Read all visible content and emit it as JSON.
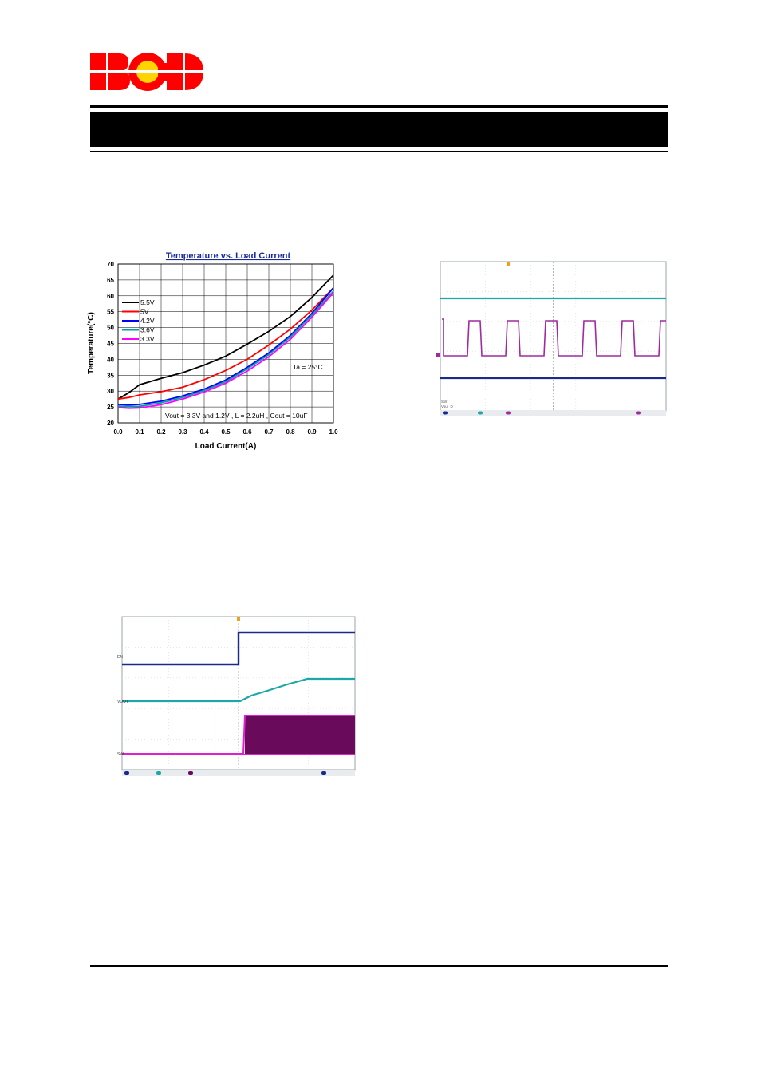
{
  "logo": {
    "text": "BCD",
    "colors": {
      "letters": "#ff0000",
      "center": "#ffd400"
    }
  },
  "colors": {
    "rule": "#000000",
    "title_band": "#000000"
  },
  "chart_data": {
    "type": "line",
    "title": "Temperature vs. Load Current",
    "xlabel": "Load Current(A)",
    "ylabel": "Temperature(°C)",
    "xlim": [
      0.0,
      1.0
    ],
    "ylim": [
      20,
      70
    ],
    "xticks": [
      "0.0",
      "0.1",
      "0.2",
      "0.3",
      "0.4",
      "0.5",
      "0.6",
      "0.7",
      "0.8",
      "0.9",
      "1.0"
    ],
    "yticks": [
      "20",
      "25",
      "30",
      "35",
      "40",
      "45",
      "50",
      "55",
      "60",
      "65",
      "70"
    ],
    "grid": true,
    "legend_position": "top-left",
    "annotations": [
      "Ta = 25°C",
      "Vout = 3.3V and 1.2V , L = 2.2uH , Cout = 10uF"
    ],
    "x": [
      0.0,
      0.05,
      0.1,
      0.2,
      0.3,
      0.4,
      0.5,
      0.6,
      0.7,
      0.8,
      0.9,
      1.0
    ],
    "series": [
      {
        "name": "5.5V",
        "color": "#000000",
        "values": [
          27.5,
          29.5,
          32.0,
          34.0,
          35.8,
          38.2,
          41.0,
          44.8,
          48.8,
          53.5,
          59.5,
          66.5
        ]
      },
      {
        "name": "5V",
        "color": "#ff0000",
        "values": [
          27.5,
          28.0,
          28.8,
          29.8,
          31.2,
          33.6,
          36.5,
          40.0,
          44.5,
          49.5,
          55.5,
          62.5
        ]
      },
      {
        "name": "4.2V",
        "color": "#0000ff",
        "values": [
          25.8,
          25.6,
          25.8,
          26.8,
          28.5,
          30.6,
          33.5,
          37.5,
          42.0,
          47.5,
          54.5,
          62.5
        ]
      },
      {
        "name": "3.6V",
        "color": "#00a0a0",
        "values": [
          25.3,
          25.1,
          25.2,
          26.3,
          28.0,
          30.2,
          33.0,
          37.0,
          41.5,
          47.0,
          54.0,
          61.5
        ]
      },
      {
        "name": "3.3V",
        "color": "#ff00ff",
        "values": [
          24.8,
          24.6,
          24.7,
          25.7,
          27.5,
          29.7,
          32.5,
          36.3,
          40.8,
          46.3,
          53.3,
          61.0
        ]
      }
    ]
  },
  "scope1": {
    "channel_labels": [
      "SW",
      "Vout_D"
    ],
    "colors": {
      "teal": "#1fa7a7",
      "purple": "#a02aa0",
      "navy": "#1a2a8a"
    }
  },
  "scope2": {
    "channel_labels": [
      "EN",
      "VOUT",
      "SW"
    ],
    "colors": {
      "teal": "#1fa7a7",
      "purple": "#6a0a5a",
      "magenta": "#e020d0",
      "navy": "#1a2a8a"
    }
  }
}
